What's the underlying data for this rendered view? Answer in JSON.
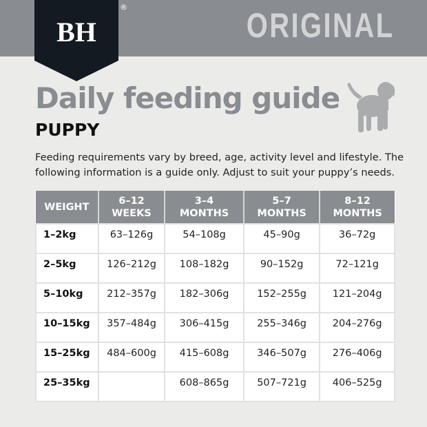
{
  "header": {
    "logo_text": "BH",
    "registered": "®",
    "brand_line": "ORIGINAL"
  },
  "title": "Daily feeding guide",
  "subtitle": "PUPPY",
  "description": "Feeding requirements vary by breed, age, activity level and lifestyle. The following information is a guide only. Adjust to suit your puppy’s needs.",
  "icon": "puppy-silhouette",
  "colors": {
    "header": "#898c90",
    "logo": "#141a21",
    "title": "#898c90"
  },
  "table": {
    "headers": [
      [
        "WEIGHT",
        ""
      ],
      [
        "6–12",
        "WEEKS"
      ],
      [
        "3–4",
        "MONTHS"
      ],
      [
        "5–7",
        "MONTHS"
      ],
      [
        "8–12",
        "MONTHS"
      ]
    ],
    "rows": [
      [
        "1–2kg",
        "63–126g",
        "54–108g",
        "45–90g",
        "36–72g"
      ],
      [
        "2–5kg",
        "126–212g",
        "108–182g",
        "90–152g",
        "72–121g"
      ],
      [
        "5–10kg",
        "212–357g",
        "182–306g",
        "152–255g",
        "121–204g"
      ],
      [
        "10–15kg",
        "357–484g",
        "306–415g",
        "255–346g",
        "204–276g"
      ],
      [
        "15–25kg",
        "484–600g",
        "415–608g",
        "346–507g",
        "276–406g"
      ],
      [
        "25–35kg",
        "",
        "608–865g",
        "507–721g",
        "406–525g"
      ]
    ]
  }
}
